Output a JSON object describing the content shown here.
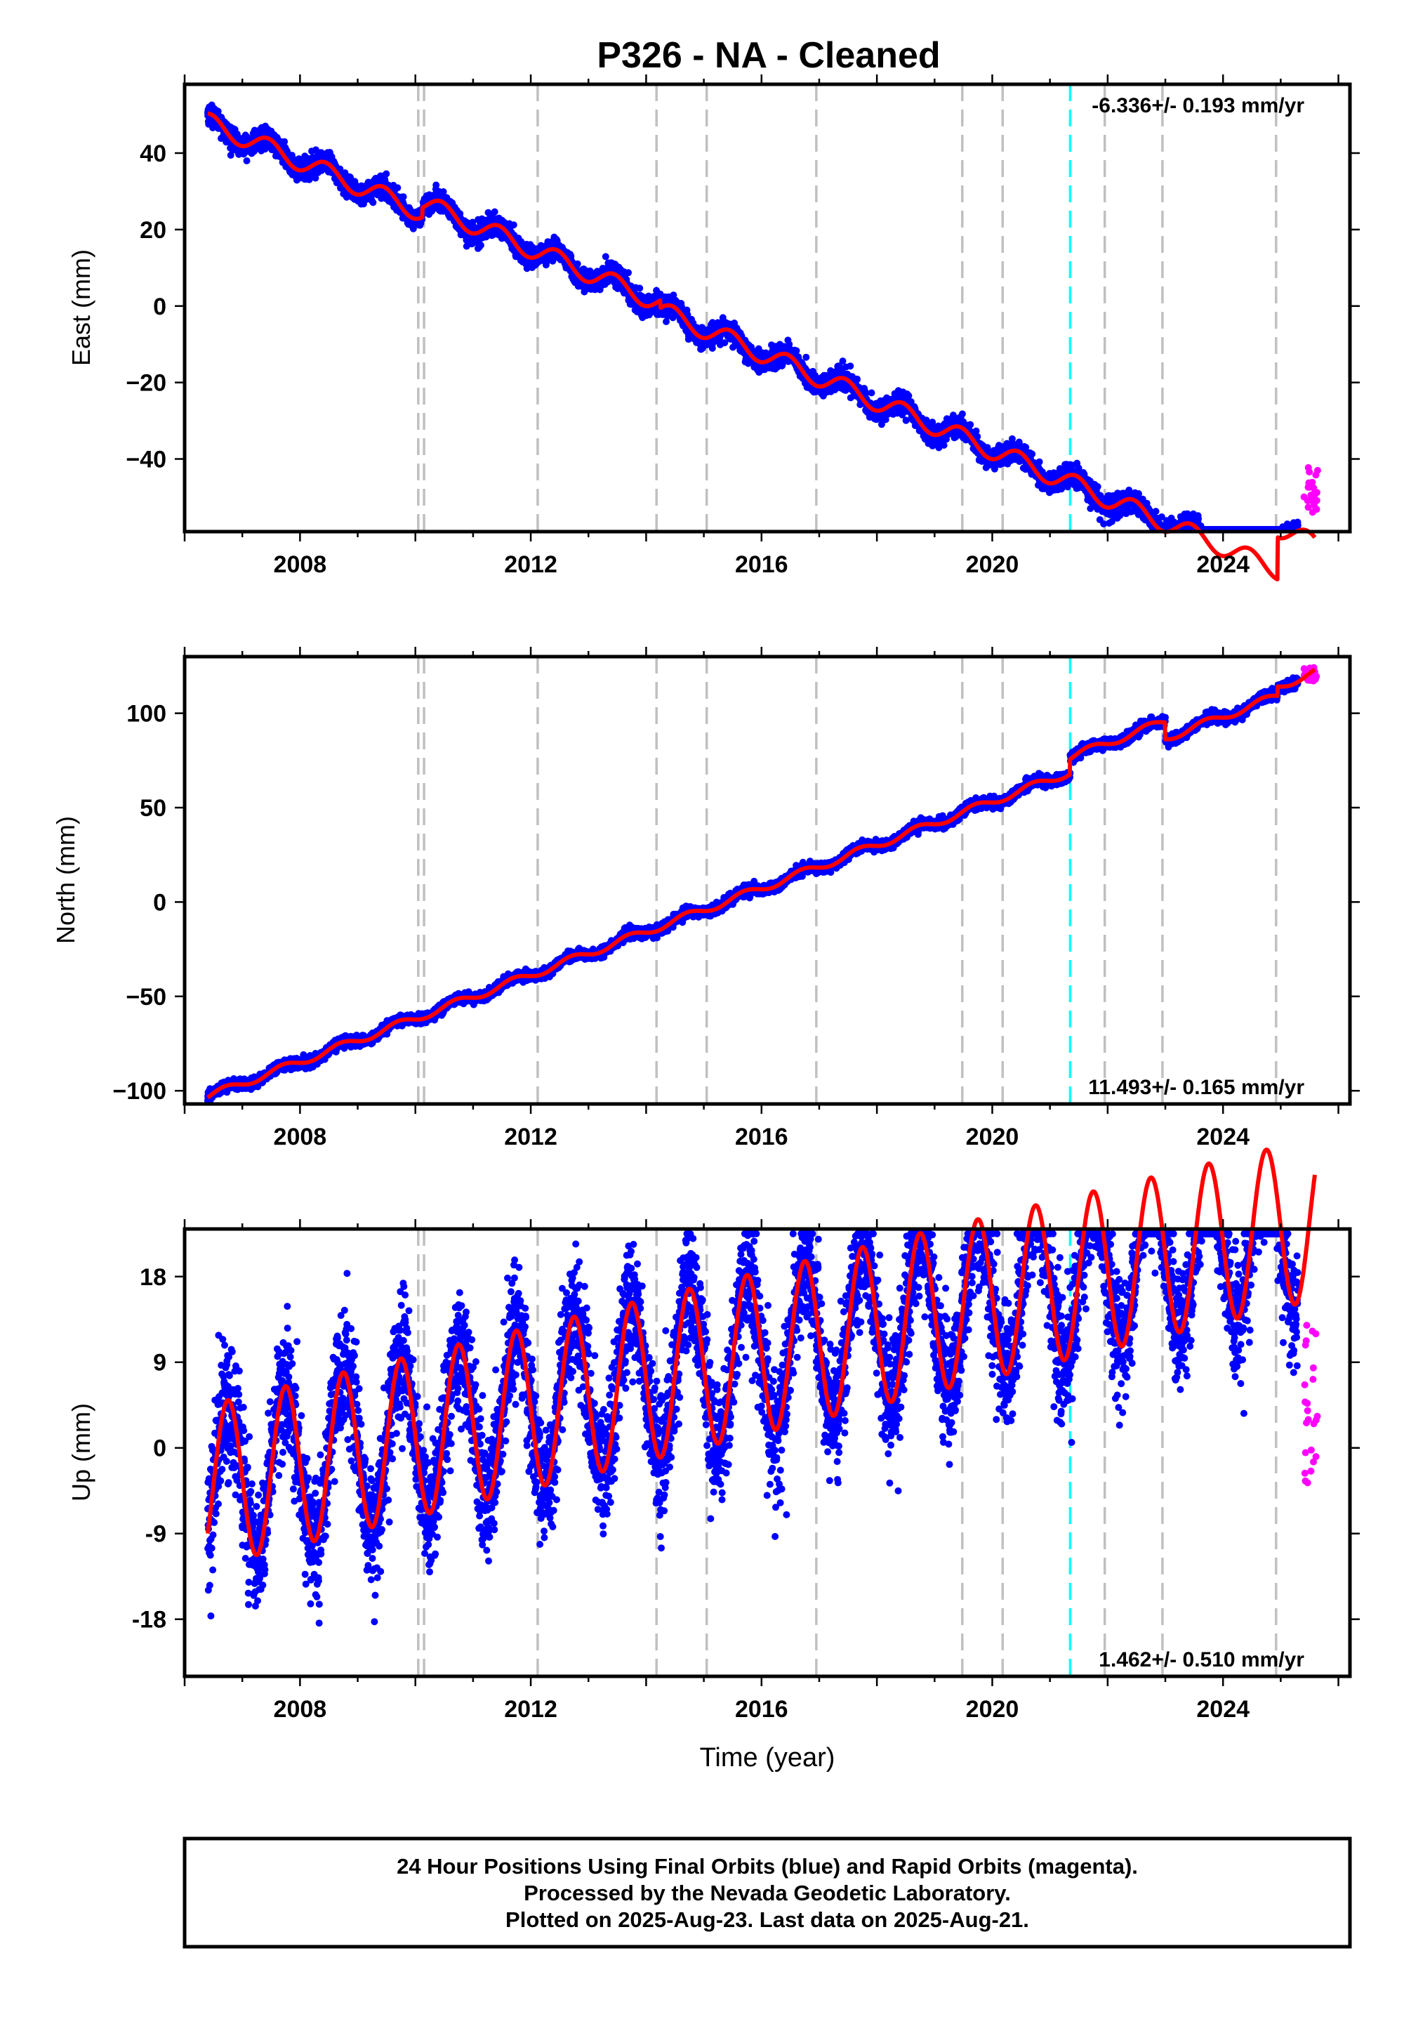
{
  "title": "P326  - NA - Cleaned",
  "x_axis_label": "Time (year)",
  "footer": {
    "line1": "24 Hour Positions Using Final Orbits (blue) and Rapid Orbits (magenta).",
    "line2": "Processed by the Nevada Geodetic Laboratory.",
    "line3": "Plotted on 2025-Aug-23. Last data on 2025-Aug-21."
  },
  "colors": {
    "final_orbits": "#0000ff",
    "rapid_orbits": "#ff00ff",
    "model_fit": "#ff0000",
    "offset_line": "#c0c0c0",
    "event_line": "#00ffff"
  },
  "chart_data": [
    {
      "type": "scatter",
      "name": "east",
      "ylabel": "East (mm)",
      "rate_label": "-6.336+/- 0.193 mm/yr",
      "xlim": [
        2006.0,
        2026.2
      ],
      "ylim": [
        -59,
        58
      ],
      "xticks": [
        2008,
        2012,
        2016,
        2020,
        2024
      ],
      "yticks": [
        40,
        20,
        0,
        -20,
        -40
      ],
      "ytick_labels": [
        "40",
        "20",
        "0",
        "−20",
        "−40"
      ],
      "grid": false,
      "model": {
        "start": 2006.4,
        "end": 2025.6,
        "intercept_at_2006_4": 48.0,
        "rate_mm_per_yr": -6.336,
        "annual_amplitude": 2.5,
        "annual_phase_peak": 0.45
      },
      "offsets": [
        {
          "time": 2010.12,
          "jump": 2.5
        },
        {
          "time": 2014.25,
          "jump": -2.0
        },
        {
          "time": 2024.95,
          "jump": 11.0
        }
      ],
      "final_orbits_end": 2025.3,
      "rapid_orbits": {
        "start": 2025.4,
        "end": 2025.64,
        "center": -48,
        "spread": 6
      }
    },
    {
      "type": "scatter",
      "name": "north",
      "ylabel": "North (mm)",
      "rate_label": "11.493+/- 0.165 mm/yr",
      "xlim": [
        2006.0,
        2026.2
      ],
      "ylim": [
        -107,
        130
      ],
      "xticks": [
        2008,
        2012,
        2016,
        2020,
        2024
      ],
      "yticks": [
        100,
        50,
        0,
        -50,
        -100
      ],
      "ytick_labels": [
        "100",
        "50",
        "0",
        "−50",
        "−100"
      ],
      "grid": false,
      "model": {
        "start": 2006.4,
        "end": 2025.6,
        "intercept_at_2006_4": -103.0,
        "rate_mm_per_yr": 11.493,
        "annual_amplitude": 2.0,
        "annual_phase_peak": 0.7
      },
      "offsets": [
        {
          "time": 2021.35,
          "jump": 8.0
        },
        {
          "time": 2023.0,
          "jump": -9.0
        },
        {
          "time": 2024.95,
          "jump": 5.0
        }
      ],
      "final_orbits_end": 2025.3,
      "rapid_orbits": {
        "start": 2025.4,
        "end": 2025.64,
        "center": 121,
        "spread": 4
      }
    },
    {
      "type": "scatter",
      "name": "up",
      "ylabel": "Up (mm)",
      "rate_label": "1.462+/- 0.510 mm/yr",
      "xlim": [
        2006.0,
        2026.2
      ],
      "ylim": [
        -24,
        23
      ],
      "xticks": [
        2008,
        2012,
        2016,
        2020,
        2024
      ],
      "yticks": [
        18,
        9,
        0,
        -9,
        -18
      ],
      "ytick_labels": [
        "18",
        "9",
        "0",
        "-9",
        "-18"
      ],
      "grid": false,
      "model": {
        "start": 2006.4,
        "end": 2025.6,
        "intercept_at_2006_4": -4.0,
        "rate_mm_per_yr": 1.462,
        "annual_amplitude": 8.5,
        "annual_phase_peak": 0.75
      },
      "offsets": [],
      "final_orbits_end": 2025.3,
      "rapid_orbits": {
        "start": 2025.4,
        "end": 2025.64,
        "center": 5,
        "spread": 9
      }
    }
  ],
  "equipment_change_lines": [
    2010.05,
    2010.15,
    2012.12,
    2014.18,
    2015.05,
    2016.95,
    2019.48,
    2020.18,
    2021.95,
    2022.95,
    2024.92
  ],
  "event_lines": [
    2021.35
  ]
}
